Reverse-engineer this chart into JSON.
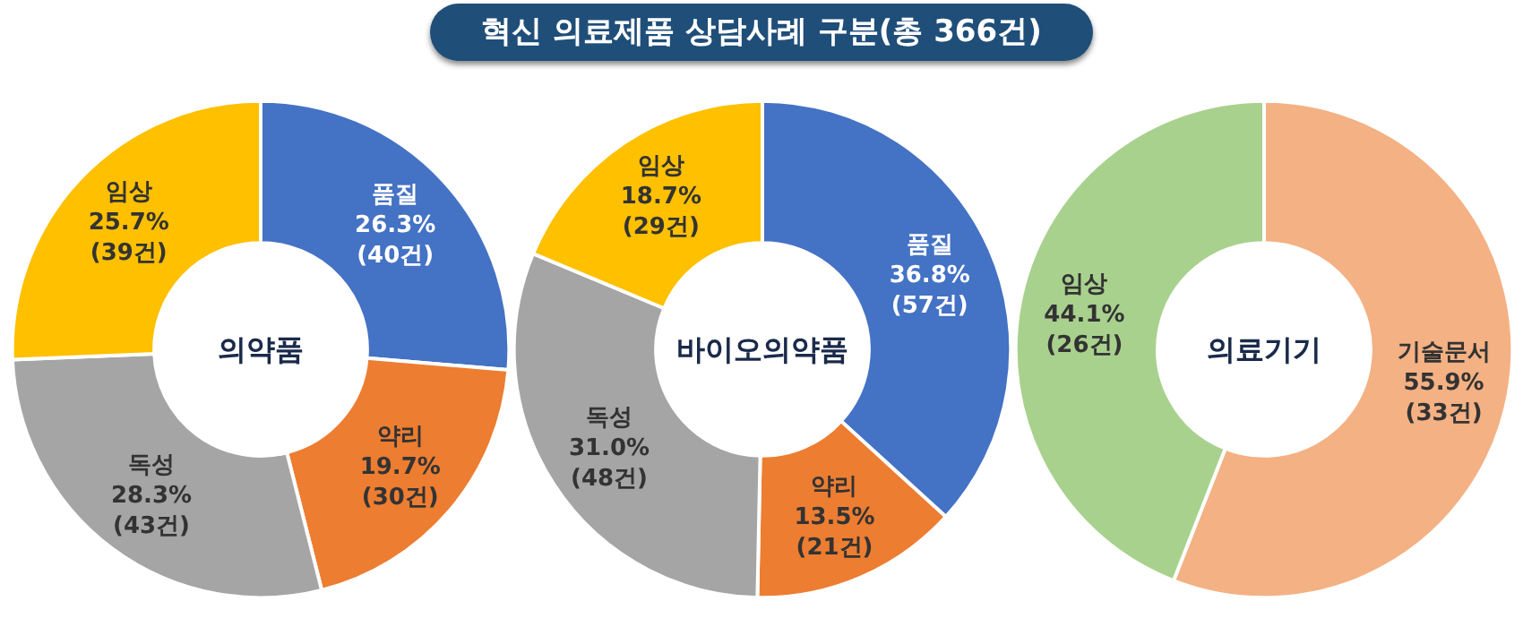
{
  "chart_data": [
    {
      "type": "other",
      "title": "혁신 의료제품 상담사례 구분(총 366건)"
    },
    {
      "type": "donut",
      "title": "의약품",
      "categories": [
        "품질",
        "약리",
        "독성",
        "임상"
      ],
      "values": [
        40,
        30,
        43,
        39
      ],
      "colors": [
        "#4472c4",
        "#ed7d31",
        "#a5a5a5",
        "#ffc000"
      ],
      "value_labels": [
        "26.3%\n(40건)",
        "19.7%\n(30건)",
        "28.3%\n(43건)",
        "25.7%\n(39건)"
      ],
      "legend": false
    },
    {
      "type": "donut",
      "title": "바이오의약품",
      "categories": [
        "품질",
        "약리",
        "독성",
        "임상"
      ],
      "values": [
        57,
        21,
        48,
        29
      ],
      "colors": [
        "#4472c4",
        "#ed7d31",
        "#a5a5a5",
        "#ffc000"
      ],
      "value_labels": [
        "36.8%\n(57건)",
        "13.5%\n(21건)",
        "31.0%\n(48건)",
        "18.7%\n(29건)"
      ],
      "legend": false
    },
    {
      "type": "donut",
      "title": "의료기기",
      "categories": [
        "기술문서",
        "임상"
      ],
      "values": [
        33,
        26
      ],
      "colors": [
        "#f4b183",
        "#a9d18e"
      ],
      "value_labels": [
        "55.9%\n(33건)",
        "44.1%\n(26건)"
      ],
      "legend": false
    }
  ]
}
